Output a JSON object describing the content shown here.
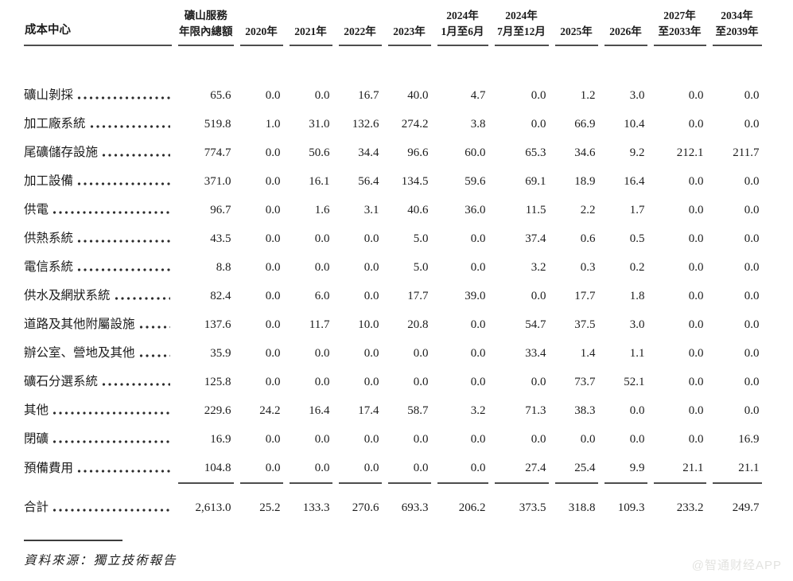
{
  "table": {
    "corner_header": "成本中心",
    "columns": [
      {
        "line1": "礦山服務",
        "line2": "年限內總額"
      },
      {
        "line1": "",
        "line2": "2020年"
      },
      {
        "line1": "",
        "line2": "2021年"
      },
      {
        "line1": "",
        "line2": "2022年"
      },
      {
        "line1": "",
        "line2": "2023年"
      },
      {
        "line1": "2024年",
        "line2": "1月至6月"
      },
      {
        "line1": "2024年",
        "line2": "7月至12月"
      },
      {
        "line1": "",
        "line2": "2025年"
      },
      {
        "line1": "",
        "line2": "2026年"
      },
      {
        "line1": "2027年",
        "line2": "至2033年"
      },
      {
        "line1": "2034年",
        "line2": "至2039年"
      }
    ],
    "rows": [
      {
        "label": "礦山剝採",
        "values": [
          "65.6",
          "0.0",
          "0.0",
          "16.7",
          "40.0",
          "4.7",
          "0.0",
          "1.2",
          "3.0",
          "0.0",
          "0.0"
        ]
      },
      {
        "label": "加工廠系統",
        "values": [
          "519.8",
          "1.0",
          "31.0",
          "132.6",
          "274.2",
          "3.8",
          "0.0",
          "66.9",
          "10.4",
          "0.0",
          "0.0"
        ]
      },
      {
        "label": "尾礦儲存設施",
        "values": [
          "774.7",
          "0.0",
          "50.6",
          "34.4",
          "96.6",
          "60.0",
          "65.3",
          "34.6",
          "9.2",
          "212.1",
          "211.7"
        ]
      },
      {
        "label": "加工設備",
        "values": [
          "371.0",
          "0.0",
          "16.1",
          "56.4",
          "134.5",
          "59.6",
          "69.1",
          "18.9",
          "16.4",
          "0.0",
          "0.0"
        ]
      },
      {
        "label": "供電",
        "values": [
          "96.7",
          "0.0",
          "1.6",
          "3.1",
          "40.6",
          "36.0",
          "11.5",
          "2.2",
          "1.7",
          "0.0",
          "0.0"
        ]
      },
      {
        "label": "供熱系統",
        "values": [
          "43.5",
          "0.0",
          "0.0",
          "0.0",
          "5.0",
          "0.0",
          "37.4",
          "0.6",
          "0.5",
          "0.0",
          "0.0"
        ]
      },
      {
        "label": "電信系統",
        "values": [
          "8.8",
          "0.0",
          "0.0",
          "0.0",
          "5.0",
          "0.0",
          "3.2",
          "0.3",
          "0.2",
          "0.0",
          "0.0"
        ]
      },
      {
        "label": "供水及網狀系統",
        "values": [
          "82.4",
          "0.0",
          "6.0",
          "0.0",
          "17.7",
          "39.0",
          "0.0",
          "17.7",
          "1.8",
          "0.0",
          "0.0"
        ]
      },
      {
        "label": "道路及其他附屬設施",
        "values": [
          "137.6",
          "0.0",
          "11.7",
          "10.0",
          "20.8",
          "0.0",
          "54.7",
          "37.5",
          "3.0",
          "0.0",
          "0.0"
        ]
      },
      {
        "label": "辦公室、營地及其他",
        "values": [
          "35.9",
          "0.0",
          "0.0",
          "0.0",
          "0.0",
          "0.0",
          "33.4",
          "1.4",
          "1.1",
          "0.0",
          "0.0"
        ]
      },
      {
        "label": "礦石分選系統",
        "values": [
          "125.8",
          "0.0",
          "0.0",
          "0.0",
          "0.0",
          "0.0",
          "0.0",
          "73.7",
          "52.1",
          "0.0",
          "0.0"
        ]
      },
      {
        "label": "其他",
        "values": [
          "229.6",
          "24.2",
          "16.4",
          "17.4",
          "58.7",
          "3.2",
          "71.3",
          "38.3",
          "0.0",
          "0.0",
          "0.0"
        ]
      },
      {
        "label": "閉礦",
        "values": [
          "16.9",
          "0.0",
          "0.0",
          "0.0",
          "0.0",
          "0.0",
          "0.0",
          "0.0",
          "0.0",
          "0.0",
          "16.9"
        ]
      },
      {
        "label": "預備費用",
        "rule_below": true,
        "values": [
          "104.8",
          "0.0",
          "0.0",
          "0.0",
          "0.0",
          "0.0",
          "27.4",
          "25.4",
          "9.9",
          "21.1",
          "21.1"
        ]
      }
    ],
    "total_row": {
      "label": "合計",
      "values": [
        "2,613.0",
        "25.2",
        "133.3",
        "270.6",
        "693.3",
        "206.2",
        "373.5",
        "318.8",
        "109.3",
        "233.2",
        "249.7"
      ]
    }
  },
  "footnote": {
    "source_text": "資料來源：獨立技術報告"
  },
  "watermark": "@智通财经APP"
}
